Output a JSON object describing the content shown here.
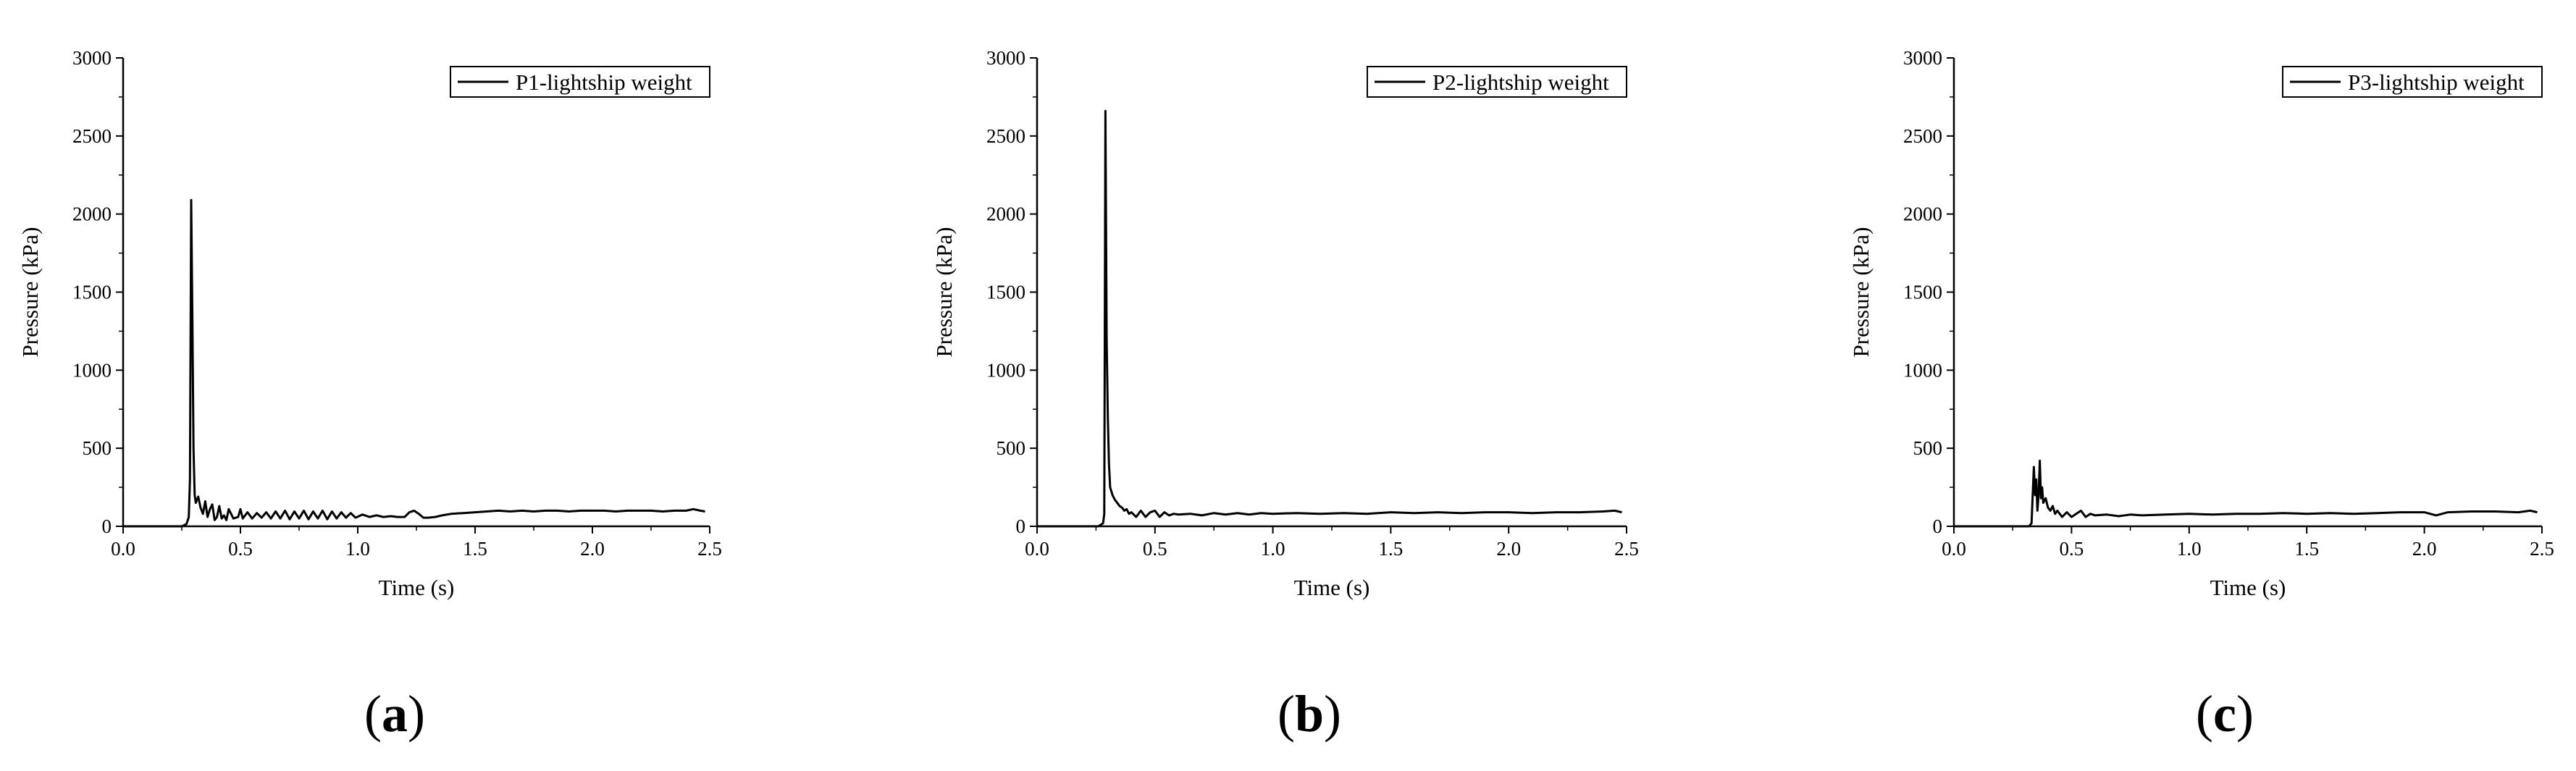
{
  "figure": {
    "panels": [
      {
        "letter": "a"
      },
      {
        "letter": "b"
      },
      {
        "letter": "c"
      }
    ]
  },
  "chart_data": [
    {
      "type": "line",
      "panel": "a",
      "xlabel": "Time (s)",
      "ylabel": "Pressure (kPa)",
      "xlim": [
        0.0,
        2.5
      ],
      "ylim": [
        0,
        3000
      ],
      "xticks": [
        "0.0",
        "0.5",
        "1.0",
        "1.5",
        "2.0",
        "2.5"
      ],
      "yticks": [
        "0",
        "500",
        "1000",
        "1500",
        "2000",
        "2500",
        "3000"
      ],
      "grid": false,
      "legend_position": "top-right",
      "series": [
        {
          "name": "P1-lightship weight",
          "color": "#000000",
          "x": [
            0.0,
            0.25,
            0.27,
            0.28,
            0.285,
            0.29,
            0.295,
            0.3,
            0.305,
            0.31,
            0.32,
            0.33,
            0.34,
            0.35,
            0.36,
            0.37,
            0.38,
            0.39,
            0.4,
            0.41,
            0.42,
            0.43,
            0.44,
            0.45,
            0.47,
            0.49,
            0.5,
            0.51,
            0.53,
            0.55,
            0.57,
            0.59,
            0.61,
            0.63,
            0.65,
            0.67,
            0.69,
            0.71,
            0.73,
            0.75,
            0.77,
            0.79,
            0.81,
            0.83,
            0.85,
            0.87,
            0.89,
            0.91,
            0.93,
            0.95,
            0.97,
            0.99,
            1.02,
            1.05,
            1.08,
            1.11,
            1.14,
            1.17,
            1.2,
            1.22,
            1.24,
            1.26,
            1.28,
            1.3,
            1.33,
            1.36,
            1.4,
            1.45,
            1.5,
            1.55,
            1.6,
            1.65,
            1.7,
            1.75,
            1.8,
            1.85,
            1.9,
            1.95,
            2.0,
            2.05,
            2.1,
            2.15,
            2.2,
            2.25,
            2.3,
            2.35,
            2.4,
            2.43,
            2.46,
            2.48
          ],
          "y": [
            0,
            0,
            15,
            60,
            300,
            2090,
            1350,
            500,
            200,
            150,
            190,
            120,
            80,
            160,
            60,
            110,
            140,
            40,
            60,
            130,
            50,
            70,
            40,
            110,
            50,
            60,
            110,
            50,
            90,
            50,
            85,
            55,
            90,
            50,
            95,
            50,
            100,
            45,
            95,
            50,
            100,
            45,
            95,
            50,
            100,
            45,
            95,
            50,
            90,
            55,
            85,
            55,
            75,
            60,
            70,
            60,
            65,
            60,
            60,
            90,
            100,
            80,
            55,
            55,
            60,
            70,
            80,
            85,
            90,
            95,
            100,
            95,
            100,
            95,
            100,
            100,
            95,
            100,
            100,
            100,
            95,
            100,
            100,
            100,
            95,
            100,
            100,
            110,
            100,
            95
          ]
        }
      ]
    },
    {
      "type": "line",
      "panel": "b",
      "xlabel": "Time (s)",
      "ylabel": "Pressure (kPa)",
      "xlim": [
        0.0,
        2.5
      ],
      "ylim": [
        0,
        3000
      ],
      "xticks": [
        "0.0",
        "0.5",
        "1.0",
        "1.5",
        "2.0",
        "2.5"
      ],
      "yticks": [
        "0",
        "500",
        "1000",
        "1500",
        "2000",
        "2500",
        "3000"
      ],
      "grid": false,
      "legend_position": "top-right",
      "series": [
        {
          "name": "P2-lightship weight",
          "color": "#000000",
          "x": [
            0.0,
            0.26,
            0.28,
            0.285,
            0.29,
            0.295,
            0.3,
            0.305,
            0.31,
            0.32,
            0.33,
            0.34,
            0.35,
            0.36,
            0.37,
            0.38,
            0.39,
            0.4,
            0.42,
            0.44,
            0.46,
            0.48,
            0.5,
            0.52,
            0.54,
            0.56,
            0.58,
            0.6,
            0.65,
            0.7,
            0.75,
            0.8,
            0.85,
            0.9,
            0.95,
            1.0,
            1.1,
            1.2,
            1.3,
            1.4,
            1.5,
            1.6,
            1.7,
            1.8,
            1.9,
            2.0,
            2.1,
            2.2,
            2.3,
            2.4,
            2.45,
            2.48
          ],
          "y": [
            0,
            0,
            20,
            80,
            2660,
            1200,
            700,
            400,
            250,
            200,
            170,
            150,
            130,
            120,
            100,
            110,
            80,
            90,
            60,
            100,
            60,
            90,
            100,
            60,
            90,
            70,
            80,
            75,
            80,
            70,
            85,
            75,
            85,
            75,
            85,
            80,
            85,
            80,
            85,
            80,
            90,
            85,
            90,
            85,
            90,
            90,
            85,
            90,
            90,
            95,
            100,
            90
          ]
        }
      ]
    },
    {
      "type": "line",
      "panel": "c",
      "xlabel": "Time (s)",
      "ylabel": "Pressure (kPa)",
      "xlim": [
        0.0,
        2.5
      ],
      "ylim": [
        0,
        3000
      ],
      "xticks": [
        "0.0",
        "0.5",
        "1.0",
        "1.5",
        "2.0",
        "2.5"
      ],
      "yticks": [
        "0",
        "500",
        "1000",
        "1500",
        "2000",
        "2500",
        "3000"
      ],
      "grid": false,
      "legend_position": "top-right",
      "series": [
        {
          "name": "P3-lightship weight",
          "color": "#000000",
          "x": [
            0.0,
            0.32,
            0.33,
            0.34,
            0.345,
            0.35,
            0.355,
            0.36,
            0.365,
            0.37,
            0.375,
            0.38,
            0.39,
            0.4,
            0.41,
            0.42,
            0.43,
            0.44,
            0.46,
            0.48,
            0.5,
            0.52,
            0.54,
            0.56,
            0.58,
            0.6,
            0.65,
            0.7,
            0.75,
            0.8,
            0.9,
            1.0,
            1.1,
            1.2,
            1.3,
            1.4,
            1.5,
            1.6,
            1.7,
            1.8,
            1.9,
            2.0,
            2.05,
            2.1,
            2.2,
            2.3,
            2.4,
            2.45,
            2.48
          ],
          "y": [
            0,
            0,
            20,
            380,
            200,
            300,
            100,
            200,
            420,
            180,
            250,
            150,
            180,
            120,
            100,
            130,
            80,
            100,
            60,
            90,
            60,
            80,
            100,
            60,
            80,
            70,
            75,
            65,
            75,
            70,
            75,
            80,
            75,
            80,
            80,
            85,
            80,
            85,
            80,
            85,
            90,
            90,
            70,
            90,
            95,
            95,
            90,
            100,
            90
          ]
        }
      ]
    }
  ]
}
